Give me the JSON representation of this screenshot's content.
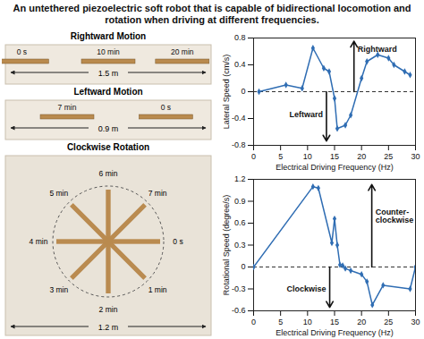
{
  "title": "An untethered piezoelectric soft robot that is capable of bidirectional locomotion and rotation when driving at different frequencies.",
  "photo_panels": [
    {
      "title": "Rightward Motion",
      "time_labels": [
        "0 s",
        "10 min",
        "20 min"
      ],
      "scale_label": "1.5 m"
    },
    {
      "title": "Leftward Motion",
      "time_labels": [
        "7 min",
        "0 s"
      ],
      "scale_label": "0.9 m"
    },
    {
      "title": "Clockwise Rotation",
      "time_labels": [
        "0 s",
        "1 min",
        "2 min",
        "3 min",
        "4 min",
        "5 min",
        "6 min",
        "7 min"
      ],
      "scale_label": "1.2 m"
    }
  ],
  "chart_data": [
    {
      "type": "line",
      "xlabel": "Electrical Driving Frequency (Hz)",
      "ylabel": "Lateral Speed (cm/s)",
      "x": [
        1,
        6,
        9,
        11,
        13,
        14,
        15,
        15.5,
        17,
        18,
        20,
        21,
        23,
        25,
        26,
        28,
        29
      ],
      "values": [
        0,
        0.1,
        0.05,
        0.65,
        0.35,
        0.3,
        -0.1,
        -0.55,
        -0.5,
        -0.35,
        0.2,
        0.45,
        0.55,
        0.5,
        0.4,
        0.3,
        0.25
      ],
      "color": "#2f6db3",
      "marker": "diamond",
      "xlim": [
        0,
        30
      ],
      "xticks": [
        0,
        5,
        10,
        15,
        20,
        25,
        30
      ],
      "ylim": [
        -0.8,
        0.8
      ],
      "yticks": [
        -0.8,
        -0.4,
        0,
        0.4,
        0.8
      ],
      "reference_line": {
        "y": 0,
        "line_style": "dashed"
      },
      "annotations": [
        "Rightward",
        "Leftward"
      ]
    },
    {
      "type": "line",
      "xlabel": "Electrical Driving Frequency (Hz)",
      "ylabel": "Rotational Speed (degree/s)",
      "x": [
        0,
        11,
        12,
        14.5,
        15,
        15.5,
        16,
        16.5,
        17,
        18,
        20,
        21,
        22,
        24,
        29,
        30
      ],
      "values": [
        0,
        1.1,
        1.08,
        0.33,
        0.66,
        0.3,
        0.03,
        0.02,
        -0.02,
        -0.05,
        -0.1,
        -0.2,
        -0.52,
        -0.25,
        -0.3,
        0
      ],
      "color": "#2f6db3",
      "marker": "diamond",
      "xlim": [
        0,
        30
      ],
      "xticks": [
        0,
        5,
        10,
        15,
        20,
        25,
        30
      ],
      "ylim": [
        -0.6,
        1.2
      ],
      "yticks": [
        -0.6,
        -0.3,
        0,
        0.3,
        0.6,
        0.9,
        1.2
      ],
      "reference_line": {
        "y": 0,
        "line_style": "dashed"
      },
      "annotations": [
        "Counter-clockwise",
        "Clockwise"
      ]
    }
  ]
}
